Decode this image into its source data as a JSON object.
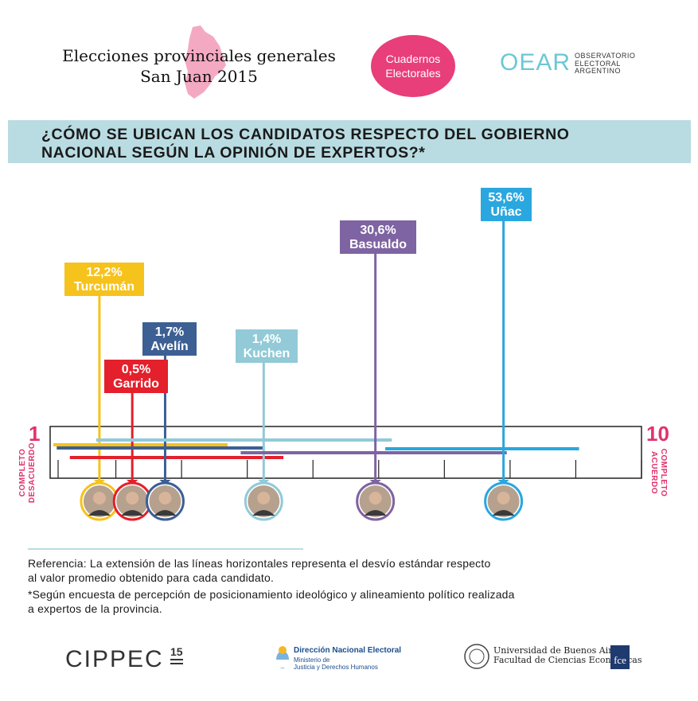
{
  "header": {
    "title_line1": "Elecciones provinciales generales",
    "title_line2": "San Juan 2015",
    "pill_line1": "Cuadernos",
    "pill_line2": "Electorales",
    "oear_logo": "OEAR",
    "oear_sub_line1": "OBSERVATORIO",
    "oear_sub_line2": "ELECTORAL",
    "oear_sub_line3": "ARGENTINO",
    "province_color": "#f4a9c3"
  },
  "question": {
    "line1": "¿CÓMO SE UBICAN LOS CANDIDATOS RESPECTO DEL GOBIERNO",
    "line2": "NACIONAL SEGÚN LA OPINIÓN DE EXPERTOS?*"
  },
  "scale": {
    "min_label": "1",
    "max_label": "10",
    "min_text_line1": "COMPLETO",
    "min_text_line2": "DESACUERDO",
    "max_text_line1": "COMPLETO",
    "max_text_line2": "ACUERDO",
    "accent": "#e0336b"
  },
  "chart_data": {
    "type": "scatter",
    "xlim": [
      1,
      10
    ],
    "ticks": [
      1,
      2,
      3,
      4,
      5,
      6,
      7,
      8,
      9,
      10
    ],
    "series": [
      {
        "name": "Turcumán",
        "vote": "12,2%",
        "mean": 1.75,
        "low": 1.05,
        "high": 3.7,
        "color": "#f6c21c"
      },
      {
        "name": "Garrido",
        "vote": "0,5%",
        "mean": 2.25,
        "low": 1.3,
        "high": 4.55,
        "color": "#e3202b"
      },
      {
        "name": "Avelín",
        "vote": "1,7%",
        "mean": 2.75,
        "low": 1.1,
        "high": 4.25,
        "color": "#3c5f94"
      },
      {
        "name": "Kuchen",
        "vote": "1,4%",
        "mean": 4.25,
        "low": 1.7,
        "high": 6.2,
        "color": "#92cad7"
      },
      {
        "name": "Basualdo",
        "vote": "30,6%",
        "mean": 5.95,
        "low": 3.9,
        "high": 7.95,
        "color": "#7e64a2"
      },
      {
        "name": "Uñac",
        "vote": "53,6%",
        "mean": 7.9,
        "low": 6.1,
        "high": 9.05,
        "color": "#2aa7df"
      }
    ]
  },
  "notes": {
    "ref_line1": "Referencia:  La extensión de las líneas horizontales representa el desvío estándar respecto",
    "ref_line2": "al valor promedio obtenido para cada candidato.",
    "survey_line1": "*Según encuesta de percepción de posicionamiento ideológico y alineamiento político realizada",
    "survey_line2": "a expertos de la provincia."
  },
  "footer": {
    "cippec": "CIPPEC",
    "cippec_badge": "15",
    "dne_title": "Dirección Nacional Electoral",
    "dne_sub1": "Ministerio de",
    "dne_sub2": "Justicia y Derechos Humanos",
    "uba_line1": "Universidad de Buenos Aires",
    "uba_line2": "Facultad de Ciencias Económicas",
    "fce": "fce"
  }
}
